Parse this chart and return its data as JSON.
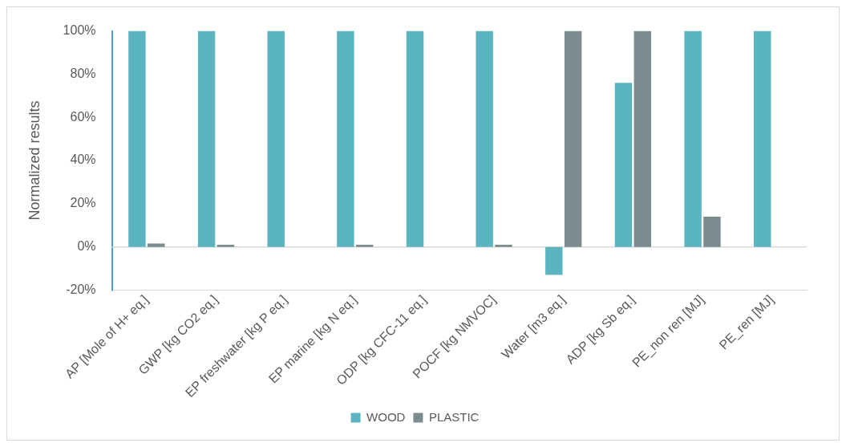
{
  "chart_data": {
    "type": "bar",
    "ylabel": "Normalized results",
    "categories": [
      "AP [Mole of H+ eq.]",
      "GWP [kg CO2 eq.]",
      "EP freshwater [kg P eq.]",
      "EP marine [kg N eq.]",
      "ODP [kg CFC-11 eq.]",
      "POCF [kg NMVOC]",
      "Water [m3 eq.]",
      "ADP [kg Sb eq.]",
      "PE_non ren [MJ]",
      "PE_ren [MJ]"
    ],
    "series": [
      {
        "name": "WOOD",
        "color": "#5bb5c1",
        "values": [
          100,
          100,
          100,
          100,
          100,
          100,
          -13,
          76,
          100,
          100
        ]
      },
      {
        "name": "PLASTIC",
        "color": "#7b8c8e",
        "values": [
          1.5,
          1,
          0,
          1,
          0,
          1,
          100,
          100,
          14,
          0
        ]
      }
    ],
    "ylim": [
      -20,
      100
    ],
    "yticks": [
      {
        "value": -20,
        "label": "-20%"
      },
      {
        "value": 0,
        "label": "0%"
      },
      {
        "value": 20,
        "label": "20%"
      },
      {
        "value": 40,
        "label": "40%"
      },
      {
        "value": 60,
        "label": "60%"
      },
      {
        "value": 80,
        "label": "80%"
      },
      {
        "value": 100,
        "label": "100%"
      }
    ],
    "ref_lines": [
      {
        "axis": "y",
        "value": 0,
        "color": "#d9d9d9"
      }
    ],
    "grid": false,
    "legend": "bottom"
  }
}
